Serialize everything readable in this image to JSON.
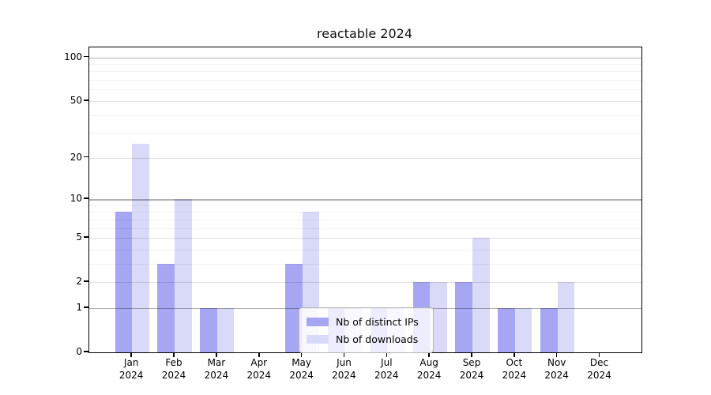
{
  "chart_data": {
    "type": "bar",
    "title": "reactable 2024",
    "yscale": "log1p",
    "background_color": "#ffffff",
    "bar_colors": {
      "distinct_ips": "#a6a6f2",
      "downloads": "#d9d9f8"
    },
    "categories": [
      {
        "line1": "Jan",
        "line2": "2024"
      },
      {
        "line1": "Feb",
        "line2": "2024"
      },
      {
        "line1": "Mar",
        "line2": "2024"
      },
      {
        "line1": "Apr",
        "line2": "2024"
      },
      {
        "line1": "May",
        "line2": "2024"
      },
      {
        "line1": "Jun",
        "line2": "2024"
      },
      {
        "line1": "Jul",
        "line2": "2024"
      },
      {
        "line1": "Aug",
        "line2": "2024"
      },
      {
        "line1": "Sep",
        "line2": "2024"
      },
      {
        "line1": "Oct",
        "line2": "2024"
      },
      {
        "line1": "Nov",
        "line2": "2024"
      },
      {
        "line1": "Dec",
        "line2": "2024"
      }
    ],
    "series": [
      {
        "name": "Nb of distinct IPs",
        "color": "#a6a6f2",
        "values": [
          8,
          3,
          1,
          0,
          3,
          1,
          1,
          2,
          2,
          1,
          1,
          0
        ]
      },
      {
        "name": "Nb of downloads",
        "color": "#d9d9f8",
        "values": [
          25,
          10,
          1,
          0,
          8,
          1,
          1,
          2,
          5,
          1,
          2,
          0
        ]
      }
    ],
    "yticks": [
      100,
      50,
      20,
      10,
      5,
      2,
      1,
      0
    ],
    "decade_ticks": [
      1,
      10,
      100
    ],
    "minor_gridlines": [
      3,
      4,
      6,
      7,
      8,
      9,
      30,
      40,
      60,
      70,
      80,
      90
    ],
    "ylim": [
      0,
      118
    ],
    "grid": "on",
    "legend_position": "lower center"
  }
}
